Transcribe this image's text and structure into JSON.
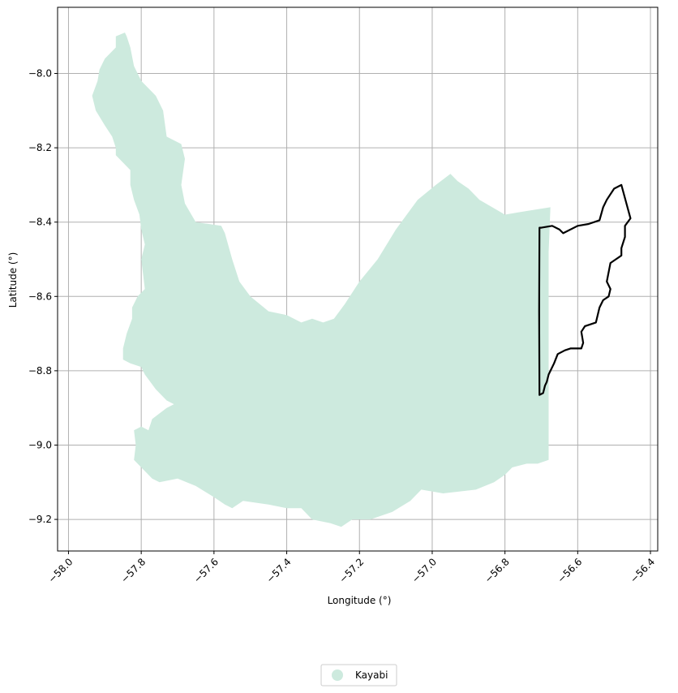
{
  "chart_data": {
    "type": "map",
    "xlabel": "Longitude (°)",
    "ylabel": "Latitude (°)",
    "xlim": [
      -58.03,
      -56.38
    ],
    "ylim": [
      -9.285,
      -7.822
    ],
    "x_ticks": [
      -58.0,
      -57.8,
      -57.6,
      -57.4,
      -57.2,
      -57.0,
      -56.8,
      -56.6,
      -56.4
    ],
    "x_tick_labels": [
      "−58.0",
      "−57.8",
      "−57.6",
      "−57.4",
      "−57.2",
      "−57.0",
      "−56.8",
      "−56.6",
      "−56.4"
    ],
    "y_ticks": [
      -8.0,
      -8.2,
      -8.4,
      -8.6,
      -8.8,
      -9.0,
      -9.2
    ],
    "y_tick_labels": [
      "−8.0",
      "−8.2",
      "−8.4",
      "−8.6",
      "−8.8",
      "−9.0",
      "−9.2"
    ],
    "grid": true,
    "legend": {
      "placement": "bottom-center",
      "entries": [
        {
          "label": "Kayabi",
          "color": "#cdeade"
        }
      ]
    },
    "region_fill_color": "#cdeade",
    "outline_color": "#000000",
    "region": {
      "name": "Kayabi",
      "coords": [
        [
          -57.845,
          -7.89
        ],
        [
          -57.87,
          -7.9
        ],
        [
          -57.87,
          -7.93
        ],
        [
          -57.9,
          -7.96
        ],
        [
          -57.915,
          -7.99
        ],
        [
          -57.92,
          -8.02
        ],
        [
          -57.935,
          -8.06
        ],
        [
          -57.925,
          -8.1
        ],
        [
          -57.9,
          -8.14
        ],
        [
          -57.88,
          -8.17
        ],
        [
          -57.87,
          -8.2
        ],
        [
          -57.87,
          -8.22
        ],
        [
          -57.85,
          -8.24
        ],
        [
          -57.83,
          -8.26
        ],
        [
          -57.83,
          -8.3
        ],
        [
          -57.82,
          -8.34
        ],
        [
          -57.805,
          -8.38
        ],
        [
          -57.8,
          -8.42
        ],
        [
          -57.79,
          -8.46
        ],
        [
          -57.8,
          -8.5
        ],
        [
          -57.795,
          -8.54
        ],
        [
          -57.79,
          -8.58
        ],
        [
          -57.81,
          -8.6
        ],
        [
          -57.825,
          -8.63
        ],
        [
          -57.825,
          -8.66
        ],
        [
          -57.84,
          -8.7
        ],
        [
          -57.85,
          -8.74
        ],
        [
          -57.85,
          -8.77
        ],
        [
          -57.83,
          -8.78
        ],
        [
          -57.8,
          -8.79
        ],
        [
          -57.79,
          -8.81
        ],
        [
          -57.76,
          -8.85
        ],
        [
          -57.73,
          -8.88
        ],
        [
          -57.71,
          -8.89
        ],
        [
          -57.73,
          -8.9
        ],
        [
          -57.77,
          -8.93
        ],
        [
          -57.78,
          -8.96
        ],
        [
          -57.8,
          -8.95
        ],
        [
          -57.82,
          -8.96
        ],
        [
          -57.815,
          -9.0
        ],
        [
          -57.82,
          -9.04
        ],
        [
          -57.8,
          -9.06
        ],
        [
          -57.77,
          -9.09
        ],
        [
          -57.75,
          -9.1
        ],
        [
          -57.7,
          -9.09
        ],
        [
          -57.65,
          -9.11
        ],
        [
          -57.6,
          -9.14
        ],
        [
          -57.57,
          -9.16
        ],
        [
          -57.55,
          -9.17
        ],
        [
          -57.52,
          -9.15
        ],
        [
          -57.45,
          -9.16
        ],
        [
          -57.4,
          -9.17
        ],
        [
          -57.36,
          -9.17
        ],
        [
          -57.33,
          -9.2
        ],
        [
          -57.28,
          -9.21
        ],
        [
          -57.25,
          -9.22
        ],
        [
          -57.22,
          -9.2
        ],
        [
          -57.17,
          -9.2
        ],
        [
          -57.11,
          -9.18
        ],
        [
          -57.06,
          -9.15
        ],
        [
          -57.03,
          -9.12
        ],
        [
          -56.97,
          -9.13
        ],
        [
          -56.88,
          -9.12
        ],
        [
          -56.83,
          -9.1
        ],
        [
          -56.8,
          -9.08
        ],
        [
          -56.78,
          -9.06
        ],
        [
          -56.74,
          -9.05
        ],
        [
          -56.71,
          -9.05
        ],
        [
          -56.68,
          -9.04
        ],
        [
          -56.68,
          -8.77
        ],
        [
          -56.68,
          -8.48
        ],
        [
          -56.675,
          -8.36
        ],
        [
          -56.74,
          -8.37
        ],
        [
          -56.8,
          -8.38
        ],
        [
          -56.87,
          -8.34
        ],
        [
          -56.9,
          -8.31
        ],
        [
          -56.93,
          -8.29
        ],
        [
          -56.95,
          -8.27
        ],
        [
          -56.99,
          -8.3
        ],
        [
          -57.04,
          -8.34
        ],
        [
          -57.1,
          -8.42
        ],
        [
          -57.15,
          -8.5
        ],
        [
          -57.2,
          -8.56
        ],
        [
          -57.24,
          -8.62
        ],
        [
          -57.27,
          -8.66
        ],
        [
          -57.3,
          -8.67
        ],
        [
          -57.33,
          -8.66
        ],
        [
          -57.36,
          -8.67
        ],
        [
          -57.4,
          -8.65
        ],
        [
          -57.45,
          -8.64
        ],
        [
          -57.5,
          -8.6
        ],
        [
          -57.53,
          -8.56
        ],
        [
          -57.55,
          -8.5
        ],
        [
          -57.57,
          -8.43
        ],
        [
          -57.58,
          -8.41
        ],
        [
          -57.65,
          -8.4
        ],
        [
          -57.68,
          -8.35
        ],
        [
          -57.69,
          -8.3
        ],
        [
          -57.68,
          -8.23
        ],
        [
          -57.69,
          -8.19
        ],
        [
          -57.73,
          -8.17
        ],
        [
          -57.74,
          -8.1
        ],
        [
          -57.76,
          -8.06
        ],
        [
          -57.8,
          -8.02
        ],
        [
          -57.82,
          -7.98
        ],
        [
          -57.83,
          -7.93
        ],
        [
          -57.84,
          -7.9
        ]
      ]
    },
    "outline": {
      "coords": [
        [
          -56.7,
          -8.415
        ],
        [
          -56.67,
          -8.41
        ],
        [
          -56.65,
          -8.42
        ],
        [
          -56.64,
          -8.43
        ],
        [
          -56.6,
          -8.41
        ],
        [
          -56.57,
          -8.405
        ],
        [
          -56.54,
          -8.395
        ],
        [
          -56.53,
          -8.36
        ],
        [
          -56.52,
          -8.34
        ],
        [
          -56.5,
          -8.31
        ],
        [
          -56.48,
          -8.3
        ],
        [
          -56.455,
          -8.39
        ],
        [
          -56.47,
          -8.41
        ],
        [
          -56.47,
          -8.44
        ],
        [
          -56.48,
          -8.47
        ],
        [
          -56.48,
          -8.49
        ],
        [
          -56.51,
          -8.51
        ],
        [
          -56.52,
          -8.56
        ],
        [
          -56.51,
          -8.58
        ],
        [
          -56.515,
          -8.6
        ],
        [
          -56.53,
          -8.61
        ],
        [
          -56.54,
          -8.63
        ],
        [
          -56.55,
          -8.67
        ],
        [
          -56.58,
          -8.68
        ],
        [
          -56.59,
          -8.695
        ],
        [
          -56.585,
          -8.725
        ],
        [
          -56.59,
          -8.74
        ],
        [
          -56.605,
          -8.74
        ],
        [
          -56.62,
          -8.74
        ],
        [
          -56.635,
          -8.745
        ],
        [
          -56.655,
          -8.755
        ],
        [
          -56.665,
          -8.78
        ],
        [
          -56.68,
          -8.81
        ],
        [
          -56.685,
          -8.83
        ],
        [
          -56.69,
          -8.84
        ],
        [
          -56.695,
          -8.86
        ],
        [
          -56.705,
          -8.865
        ],
        [
          -56.706,
          -8.64
        ],
        [
          -56.705,
          -8.415
        ]
      ]
    }
  }
}
